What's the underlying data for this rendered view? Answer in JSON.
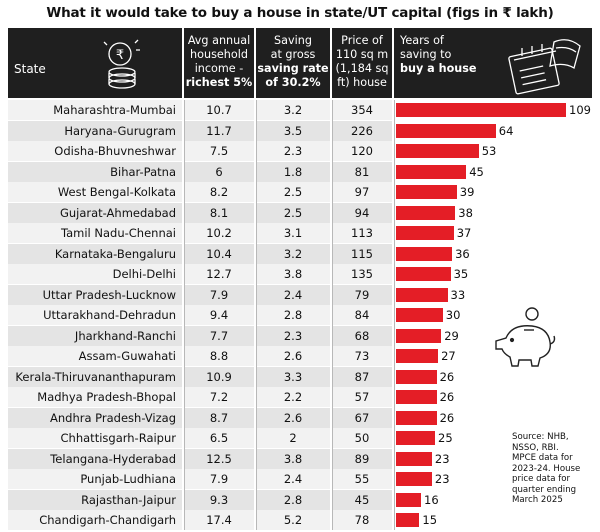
{
  "title": "What it would take to buy a house in state/UT capital (figs in ₹ lakh)",
  "headers": {
    "state": "State",
    "income": [
      "Avg annual",
      "household",
      "income -",
      "richest 5%"
    ],
    "saving": [
      "Saving",
      "at gross",
      "saving rate",
      "of 30.2%"
    ],
    "price": [
      "Price of",
      "110 sq m",
      "(1,184 sq",
      "ft) house"
    ],
    "years": [
      "Years of",
      "saving to",
      "buy a house"
    ]
  },
  "chart_data": {
    "type": "bar",
    "orientation": "horizontal",
    "title": "What it would take to buy a house in state/UT capital (figs in ₹ lakh)",
    "categories": [
      "Maharashtra-Mumbai",
      "Haryana-Gurugram",
      "Odisha-Bhuvneshwar",
      "Bihar-Patna",
      "West Bengal-Kolkata",
      "Gujarat-Ahmedabad",
      "Tamil Nadu-Chennai",
      "Karnataka-Bengaluru",
      "Delhi-Delhi",
      "Uttar Pradesh-Lucknow",
      "Uttarakhand-Dehradun",
      "Jharkhand-Ranchi",
      "Assam-Guwahati",
      "Kerala-Thiruvananthapuram",
      "Madhya Pradesh-Bhopal",
      "Andhra Pradesh-Vizag",
      "Chhattisgarh-Raipur",
      "Telangana-Hyderabad",
      "Punjab-Ludhiana",
      "Rajasthan-Jaipur",
      "Chandigarh-Chandigarh"
    ],
    "income": [
      "10.7",
      "11.7",
      "7.5",
      "6",
      "8.2",
      "8.1",
      "10.2",
      "10.4",
      "12.7",
      "7.9",
      "9.4",
      "7.7",
      "8.8",
      "10.9",
      "7.2",
      "8.7",
      "6.5",
      "12.5",
      "7.9",
      "9.3",
      "17.4"
    ],
    "saving": [
      "3.2",
      "3.5",
      "2.3",
      "1.8",
      "2.5",
      "2.5",
      "3.1",
      "3.2",
      "3.8",
      "2.4",
      "2.8",
      "2.3",
      "2.6",
      "3.3",
      "2.2",
      "2.6",
      "2",
      "3.8",
      "2.4",
      "2.8",
      "5.2"
    ],
    "price": [
      "354",
      "226",
      "120",
      "81",
      "97",
      "94",
      "113",
      "115",
      "135",
      "79",
      "84",
      "68",
      "73",
      "87",
      "57",
      "67",
      "50",
      "89",
      "55",
      "45",
      "78"
    ],
    "series": [
      {
        "name": "Years of saving to buy a house",
        "values": [
          109,
          64,
          53,
          45,
          39,
          38,
          37,
          36,
          35,
          33,
          30,
          29,
          27,
          26,
          26,
          26,
          25,
          23,
          23,
          16,
          15
        ]
      }
    ],
    "xlim": [
      0,
      109
    ],
    "bar_color": "#e41e26"
  },
  "source": [
    "Source: NHB,",
    "NSSO, RBI.",
    "MPCE data for",
    "2023-24. House",
    "price data for",
    "quarter ending",
    "March 2025"
  ]
}
